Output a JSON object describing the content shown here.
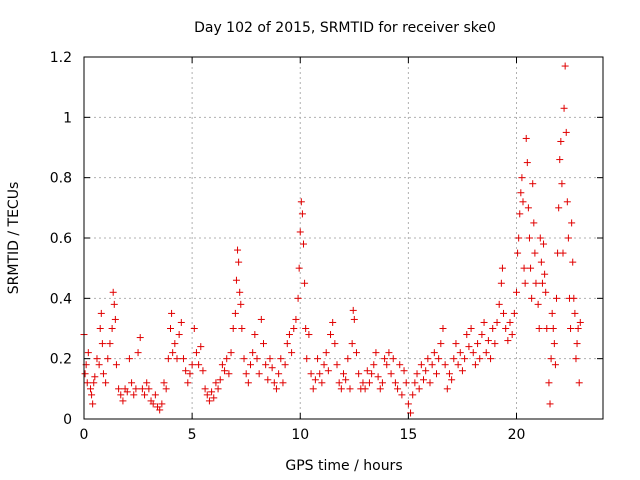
{
  "chart_data": {
    "type": "scatter",
    "title": "Day 102 of 2015, SRMTID for receiver ske0",
    "xlabel": "GPS time / hours",
    "ylabel": "SRMTID / TECUs",
    "xlim": [
      0,
      24
    ],
    "ylim": [
      0,
      1.2
    ],
    "xticks": [
      0,
      5,
      10,
      15,
      20
    ],
    "xtick_labels": [
      "0",
      "5",
      "10",
      "15",
      "20"
    ],
    "yticks": [
      0,
      0.2,
      0.4,
      0.6,
      0.8,
      1.0,
      1.2
    ],
    "ytick_labels": [
      "0",
      "0.2",
      "0.4",
      "0.6",
      "0.8",
      "1",
      "1.2"
    ],
    "grid": true,
    "marker": "+",
    "color": "#e00000",
    "series": [
      {
        "name": "ske0",
        "points": [
          [
            0.0,
            0.28
          ],
          [
            0.05,
            0.15
          ],
          [
            0.1,
            0.18
          ],
          [
            0.15,
            0.12
          ],
          [
            0.2,
            0.22
          ],
          [
            0.3,
            0.1
          ],
          [
            0.35,
            0.08
          ],
          [
            0.4,
            0.05
          ],
          [
            0.45,
            0.12
          ],
          [
            0.5,
            0.14
          ],
          [
            0.6,
            0.2
          ],
          [
            0.7,
            0.18
          ],
          [
            0.75,
            0.3
          ],
          [
            0.8,
            0.35
          ],
          [
            0.85,
            0.25
          ],
          [
            0.9,
            0.15
          ],
          [
            1.0,
            0.12
          ],
          [
            1.1,
            0.2
          ],
          [
            1.2,
            0.25
          ],
          [
            1.3,
            0.3
          ],
          [
            1.35,
            0.42
          ],
          [
            1.4,
            0.38
          ],
          [
            1.45,
            0.33
          ],
          [
            1.5,
            0.18
          ],
          [
            1.6,
            0.1
          ],
          [
            1.7,
            0.08
          ],
          [
            1.8,
            0.06
          ],
          [
            1.9,
            0.1
          ],
          [
            2.0,
            0.09
          ],
          [
            2.1,
            0.2
          ],
          [
            2.2,
            0.12
          ],
          [
            2.3,
            0.08
          ],
          [
            2.4,
            0.1
          ],
          [
            2.5,
            0.22
          ],
          [
            2.6,
            0.27
          ],
          [
            2.7,
            0.1
          ],
          [
            2.8,
            0.08
          ],
          [
            2.9,
            0.12
          ],
          [
            3.0,
            0.1
          ],
          [
            3.1,
            0.06
          ],
          [
            3.2,
            0.05
          ],
          [
            3.3,
            0.08
          ],
          [
            3.4,
            0.04
          ],
          [
            3.5,
            0.03
          ],
          [
            3.6,
            0.05
          ],
          [
            3.7,
            0.12
          ],
          [
            3.8,
            0.1
          ],
          [
            3.9,
            0.2
          ],
          [
            4.0,
            0.3
          ],
          [
            4.05,
            0.35
          ],
          [
            4.1,
            0.22
          ],
          [
            4.2,
            0.25
          ],
          [
            4.3,
            0.2
          ],
          [
            4.4,
            0.28
          ],
          [
            4.5,
            0.32
          ],
          [
            4.6,
            0.2
          ],
          [
            4.7,
            0.16
          ],
          [
            4.8,
            0.12
          ],
          [
            4.9,
            0.15
          ],
          [
            5.0,
            0.18
          ],
          [
            5.1,
            0.3
          ],
          [
            5.2,
            0.22
          ],
          [
            5.3,
            0.18
          ],
          [
            5.4,
            0.24
          ],
          [
            5.5,
            0.16
          ],
          [
            5.6,
            0.1
          ],
          [
            5.7,
            0.08
          ],
          [
            5.8,
            0.06
          ],
          [
            5.9,
            0.09
          ],
          [
            6.0,
            0.07
          ],
          [
            6.1,
            0.12
          ],
          [
            6.2,
            0.1
          ],
          [
            6.3,
            0.13
          ],
          [
            6.4,
            0.18
          ],
          [
            6.5,
            0.16
          ],
          [
            6.6,
            0.2
          ],
          [
            6.7,
            0.15
          ],
          [
            6.8,
            0.22
          ],
          [
            6.9,
            0.3
          ],
          [
            7.0,
            0.35
          ],
          [
            7.05,
            0.46
          ],
          [
            7.1,
            0.56
          ],
          [
            7.15,
            0.52
          ],
          [
            7.2,
            0.42
          ],
          [
            7.25,
            0.38
          ],
          [
            7.3,
            0.3
          ],
          [
            7.4,
            0.2
          ],
          [
            7.5,
            0.15
          ],
          [
            7.6,
            0.12
          ],
          [
            7.7,
            0.18
          ],
          [
            7.8,
            0.22
          ],
          [
            7.9,
            0.28
          ],
          [
            8.0,
            0.2
          ],
          [
            8.1,
            0.15
          ],
          [
            8.2,
            0.33
          ],
          [
            8.3,
            0.25
          ],
          [
            8.4,
            0.18
          ],
          [
            8.5,
            0.13
          ],
          [
            8.6,
            0.2
          ],
          [
            8.7,
            0.17
          ],
          [
            8.8,
            0.12
          ],
          [
            8.9,
            0.1
          ],
          [
            9.0,
            0.15
          ],
          [
            9.1,
            0.2
          ],
          [
            9.2,
            0.12
          ],
          [
            9.3,
            0.18
          ],
          [
            9.4,
            0.25
          ],
          [
            9.5,
            0.28
          ],
          [
            9.6,
            0.22
          ],
          [
            9.7,
            0.3
          ],
          [
            9.8,
            0.33
          ],
          [
            9.9,
            0.4
          ],
          [
            9.95,
            0.5
          ],
          [
            10.0,
            0.62
          ],
          [
            10.05,
            0.72
          ],
          [
            10.1,
            0.68
          ],
          [
            10.15,
            0.58
          ],
          [
            10.2,
            0.45
          ],
          [
            10.25,
            0.3
          ],
          [
            10.3,
            0.2
          ],
          [
            10.4,
            0.28
          ],
          [
            10.5,
            0.15
          ],
          [
            10.6,
            0.1
          ],
          [
            10.7,
            0.13
          ],
          [
            10.8,
            0.2
          ],
          [
            10.9,
            0.15
          ],
          [
            11.0,
            0.12
          ],
          [
            11.1,
            0.18
          ],
          [
            11.2,
            0.22
          ],
          [
            11.3,
            0.16
          ],
          [
            11.4,
            0.28
          ],
          [
            11.5,
            0.32
          ],
          [
            11.6,
            0.25
          ],
          [
            11.7,
            0.18
          ],
          [
            11.8,
            0.12
          ],
          [
            11.9,
            0.1
          ],
          [
            12.0,
            0.15
          ],
          [
            12.1,
            0.13
          ],
          [
            12.2,
            0.2
          ],
          [
            12.3,
            0.1
          ],
          [
            12.4,
            0.25
          ],
          [
            12.45,
            0.36
          ],
          [
            12.5,
            0.33
          ],
          [
            12.6,
            0.22
          ],
          [
            12.7,
            0.15
          ],
          [
            12.8,
            0.1
          ],
          [
            12.9,
            0.12
          ],
          [
            13.0,
            0.1
          ],
          [
            13.1,
            0.16
          ],
          [
            13.2,
            0.12
          ],
          [
            13.3,
            0.15
          ],
          [
            13.4,
            0.18
          ],
          [
            13.5,
            0.22
          ],
          [
            13.6,
            0.14
          ],
          [
            13.7,
            0.1
          ],
          [
            13.8,
            0.12
          ],
          [
            13.9,
            0.2
          ],
          [
            14.0,
            0.18
          ],
          [
            14.1,
            0.22
          ],
          [
            14.2,
            0.15
          ],
          [
            14.3,
            0.2
          ],
          [
            14.4,
            0.12
          ],
          [
            14.5,
            0.1
          ],
          [
            14.6,
            0.18
          ],
          [
            14.7,
            0.08
          ],
          [
            14.8,
            0.16
          ],
          [
            14.9,
            0.12
          ],
          [
            15.0,
            0.05
          ],
          [
            15.1,
            0.02
          ],
          [
            15.2,
            0.08
          ],
          [
            15.3,
            0.12
          ],
          [
            15.4,
            0.15
          ],
          [
            15.5,
            0.1
          ],
          [
            15.6,
            0.18
          ],
          [
            15.7,
            0.13
          ],
          [
            15.8,
            0.16
          ],
          [
            15.9,
            0.2
          ],
          [
            16.0,
            0.12
          ],
          [
            16.1,
            0.18
          ],
          [
            16.2,
            0.22
          ],
          [
            16.3,
            0.15
          ],
          [
            16.4,
            0.2
          ],
          [
            16.5,
            0.25
          ],
          [
            16.6,
            0.3
          ],
          [
            16.7,
            0.18
          ],
          [
            16.8,
            0.1
          ],
          [
            16.9,
            0.15
          ],
          [
            17.0,
            0.13
          ],
          [
            17.1,
            0.2
          ],
          [
            17.2,
            0.25
          ],
          [
            17.3,
            0.18
          ],
          [
            17.4,
            0.22
          ],
          [
            17.5,
            0.16
          ],
          [
            17.6,
            0.2
          ],
          [
            17.7,
            0.28
          ],
          [
            17.8,
            0.24
          ],
          [
            17.9,
            0.3
          ],
          [
            18.0,
            0.22
          ],
          [
            18.1,
            0.18
          ],
          [
            18.2,
            0.25
          ],
          [
            18.3,
            0.2
          ],
          [
            18.4,
            0.28
          ],
          [
            18.5,
            0.32
          ],
          [
            18.6,
            0.22
          ],
          [
            18.7,
            0.26
          ],
          [
            18.8,
            0.2
          ],
          [
            18.9,
            0.3
          ],
          [
            19.0,
            0.25
          ],
          [
            19.1,
            0.32
          ],
          [
            19.2,
            0.38
          ],
          [
            19.3,
            0.45
          ],
          [
            19.35,
            0.5
          ],
          [
            19.4,
            0.35
          ],
          [
            19.5,
            0.3
          ],
          [
            19.6,
            0.26
          ],
          [
            19.7,
            0.32
          ],
          [
            19.8,
            0.28
          ],
          [
            19.9,
            0.35
          ],
          [
            20.0,
            0.42
          ],
          [
            20.05,
            0.55
          ],
          [
            20.1,
            0.6
          ],
          [
            20.15,
            0.68
          ],
          [
            20.2,
            0.75
          ],
          [
            20.25,
            0.8
          ],
          [
            20.3,
            0.72
          ],
          [
            20.35,
            0.5
          ],
          [
            20.4,
            0.45
          ],
          [
            20.45,
            0.93
          ],
          [
            20.5,
            0.85
          ],
          [
            20.55,
            0.7
          ],
          [
            20.6,
            0.6
          ],
          [
            20.65,
            0.5
          ],
          [
            20.7,
            0.4
          ],
          [
            20.75,
            0.78
          ],
          [
            20.8,
            0.65
          ],
          [
            20.85,
            0.55
          ],
          [
            20.9,
            0.45
          ],
          [
            21.0,
            0.38
          ],
          [
            21.05,
            0.3
          ],
          [
            21.1,
            0.6
          ],
          [
            21.15,
            0.52
          ],
          [
            21.2,
            0.45
          ],
          [
            21.25,
            0.58
          ],
          [
            21.3,
            0.48
          ],
          [
            21.35,
            0.42
          ],
          [
            21.4,
            0.3
          ],
          [
            21.5,
            0.12
          ],
          [
            21.55,
            0.05
          ],
          [
            21.6,
            0.2
          ],
          [
            21.65,
            0.35
          ],
          [
            21.7,
            0.3
          ],
          [
            21.75,
            0.25
          ],
          [
            21.8,
            0.18
          ],
          [
            21.85,
            0.4
          ],
          [
            21.9,
            0.55
          ],
          [
            21.95,
            0.7
          ],
          [
            22.0,
            0.86
          ],
          [
            22.05,
            0.92
          ],
          [
            22.1,
            0.78
          ],
          [
            22.15,
            0.55
          ],
          [
            22.2,
            1.03
          ],
          [
            22.25,
            1.17
          ],
          [
            22.3,
            0.95
          ],
          [
            22.35,
            0.72
          ],
          [
            22.4,
            0.6
          ],
          [
            22.45,
            0.4
          ],
          [
            22.5,
            0.3
          ],
          [
            22.55,
            0.65
          ],
          [
            22.6,
            0.52
          ],
          [
            22.65,
            0.4
          ],
          [
            22.7,
            0.35
          ],
          [
            22.75,
            0.2
          ],
          [
            22.8,
            0.25
          ],
          [
            22.85,
            0.3
          ],
          [
            22.9,
            0.12
          ],
          [
            22.95,
            0.32
          ]
        ]
      }
    ]
  }
}
